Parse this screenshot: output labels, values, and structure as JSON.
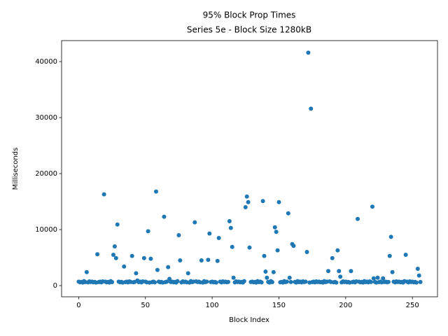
{
  "chart_data": {
    "type": "scatter",
    "title": "95% Block Prop Times",
    "subtitle": "Series 5e - Block Size 1280kB",
    "x_label": "Block Index",
    "y_label": "Milliseconds",
    "color": "#1f77b4",
    "xlim": [
      -12.8,
      268.8
    ],
    "ylim": [
      -2000,
      43750
    ],
    "xticks": [
      0,
      50,
      100,
      150,
      200,
      250
    ],
    "yticks": [
      0,
      10000,
      20000,
      30000,
      40000
    ],
    "x": [
      0,
      1,
      2,
      3,
      4,
      5,
      6,
      7,
      8,
      9,
      10,
      11,
      12,
      13,
      14,
      15,
      16,
      17,
      18,
      19,
      20,
      21,
      22,
      23,
      24,
      25,
      26,
      27,
      28,
      29,
      30,
      31,
      32,
      33,
      34,
      35,
      36,
      37,
      38,
      39,
      40,
      41,
      42,
      43,
      44,
      45,
      46,
      47,
      48,
      49,
      50,
      51,
      52,
      53,
      54,
      55,
      56,
      57,
      58,
      59,
      60,
      61,
      62,
      63,
      64,
      65,
      66,
      67,
      68,
      69,
      70,
      71,
      72,
      73,
      74,
      75,
      76,
      77,
      78,
      79,
      80,
      81,
      82,
      83,
      84,
      85,
      86,
      87,
      88,
      89,
      90,
      91,
      92,
      93,
      94,
      95,
      96,
      97,
      98,
      99,
      100,
      101,
      102,
      103,
      104,
      105,
      106,
      107,
      108,
      109,
      110,
      111,
      112,
      113,
      114,
      115,
      116,
      117,
      118,
      119,
      120,
      121,
      122,
      123,
      124,
      125,
      126,
      127,
      128,
      129,
      130,
      131,
      132,
      133,
      134,
      135,
      136,
      137,
      138,
      139,
      140,
      141,
      142,
      143,
      144,
      145,
      146,
      147,
      148,
      149,
      150,
      151,
      152,
      153,
      154,
      155,
      156,
      157,
      158,
      159,
      160,
      161,
      162,
      163,
      164,
      165,
      166,
      167,
      168,
      169,
      170,
      171,
      172,
      173,
      174,
      175,
      176,
      177,
      178,
      179,
      180,
      181,
      182,
      183,
      184,
      185,
      186,
      187,
      188,
      189,
      190,
      191,
      192,
      193,
      194,
      195,
      196,
      197,
      198,
      199,
      200,
      201,
      202,
      203,
      204,
      205,
      206,
      207,
      208,
      209,
      210,
      211,
      212,
      213,
      214,
      215,
      216,
      217,
      218,
      219,
      220,
      221,
      222,
      223,
      224,
      225,
      226,
      227,
      228,
      229,
      230,
      231,
      232,
      233,
      234,
      235,
      236,
      237,
      238,
      239,
      240,
      241,
      242,
      243,
      244,
      245,
      246,
      247,
      248,
      249,
      250,
      251,
      252,
      253,
      254,
      255,
      256
    ],
    "values": [
      700,
      600,
      650,
      550,
      800,
      620,
      2400,
      580,
      750,
      640,
      700,
      600,
      650,
      550,
      5600,
      620,
      700,
      580,
      750,
      16300,
      700,
      600,
      650,
      550,
      800,
      620,
      5500,
      7000,
      4900,
      10900,
      700,
      600,
      650,
      550,
      3400,
      620,
      700,
      580,
      750,
      640,
      5300,
      600,
      650,
      2200,
      900,
      620,
      700,
      580,
      750,
      4900,
      700,
      600,
      9700,
      550,
      4800,
      620,
      700,
      580,
      16800,
      2800,
      700,
      600,
      650,
      550,
      12300,
      620,
      700,
      3300,
      1200,
      640,
      700,
      600,
      650,
      550,
      800,
      9000,
      4500,
      580,
      750,
      640,
      700,
      600,
      2200,
      550,
      800,
      620,
      700,
      11300,
      750,
      640,
      700,
      600,
      4500,
      550,
      800,
      620,
      700,
      4600,
      9300,
      640,
      700,
      600,
      650,
      550,
      4400,
      8500,
      700,
      580,
      750,
      640,
      700,
      600,
      650,
      11500,
      10300,
      6900,
      1400,
      580,
      750,
      640,
      700,
      600,
      650,
      550,
      800,
      14000,
      15900,
      14900,
      6800,
      640,
      700,
      600,
      650,
      550,
      800,
      620,
      700,
      580,
      15100,
      5300,
      2500,
      1400,
      650,
      550,
      800,
      620,
      2400,
      10400,
      9600,
      6300,
      14900,
      600,
      650,
      550,
      800,
      620,
      700,
      12900,
      1400,
      640,
      7400,
      7100,
      650,
      550,
      800,
      620,
      700,
      580,
      750,
      640,
      700,
      6000,
      41600,
      550,
      31600,
      620,
      700,
      580,
      750,
      640,
      700,
      600,
      650,
      550,
      800,
      620,
      700,
      2600,
      750,
      640,
      4900,
      600,
      650,
      550,
      6300,
      2600,
      1600,
      580,
      750,
      640,
      700,
      600,
      650,
      550,
      2600,
      620,
      700,
      580,
      750,
      11900,
      700,
      600,
      650,
      550,
      800,
      620,
      700,
      580,
      750,
      640,
      14100,
      1300,
      650,
      550,
      1400,
      620,
      700,
      580,
      1300,
      640,
      700,
      600,
      650,
      5300,
      8700,
      2400,
      700,
      580,
      750,
      640,
      700,
      600,
      650,
      550,
      800,
      5500,
      700,
      580,
      750,
      640,
      700,
      600,
      650,
      550,
      3000,
      1800,
      640
    ]
  }
}
